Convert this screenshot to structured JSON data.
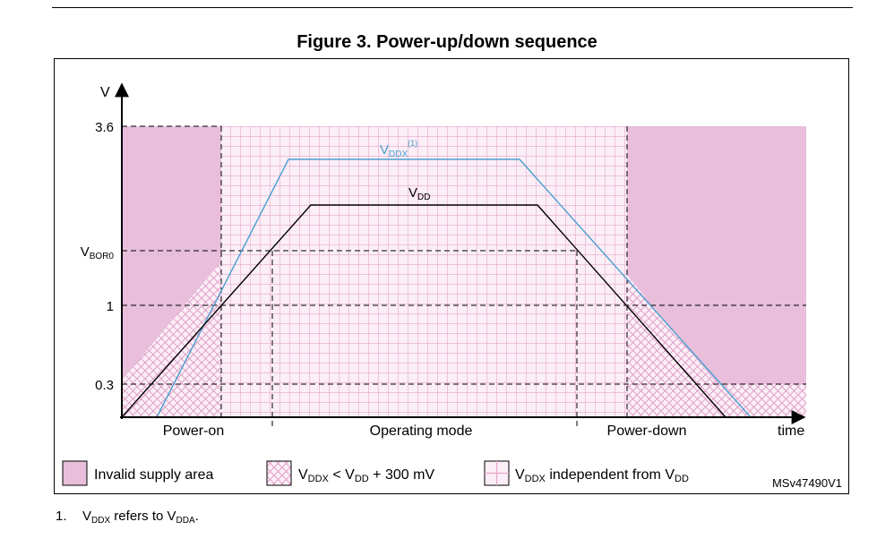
{
  "figure": {
    "title": "Figure 3. Power-up/down sequence",
    "code": "MSv47490V1"
  },
  "axes": {
    "y_label": "V",
    "x_label": "time",
    "y_ticks": [
      {
        "text": "3.6",
        "value": 3.6
      },
      {
        "text": "V",
        "sub": "BOR0",
        "value": "V_BOR0"
      },
      {
        "text": "1",
        "value": 1
      },
      {
        "text": "0.3",
        "value": 0.3
      }
    ]
  },
  "curves": {
    "vddx": {
      "main": "V",
      "sub": "DDX",
      "sup": "(1)",
      "color": "#4a9fd0"
    },
    "vdd": {
      "main": "V",
      "sub": "DD",
      "color": "#000000"
    }
  },
  "phases": [
    "Power-on",
    "Operating mode",
    "Power-down"
  ],
  "legend": [
    {
      "name": "invalid",
      "parts": [
        [
          "t",
          "Invalid supply area"
        ]
      ]
    },
    {
      "name": "crosshatch",
      "parts": [
        [
          "t",
          "V"
        ],
        [
          "s",
          "DDX"
        ],
        [
          "t",
          " < V"
        ],
        [
          "s",
          "DD"
        ],
        [
          "t",
          " + 300 mV"
        ]
      ]
    },
    {
      "name": "grid",
      "parts": [
        [
          "t",
          "V"
        ],
        [
          "s",
          "DDX"
        ],
        [
          "t",
          " independent from V"
        ],
        [
          "s",
          "DD"
        ]
      ]
    }
  ],
  "colors": {
    "invalid_fill": "#e8bedb",
    "grid_line": "#e5a8cc",
    "grid_bg": "#fbeef6",
    "dash": "#000000"
  },
  "footnote": {
    "number": "1.",
    "parts": [
      [
        "t",
        "V"
      ],
      [
        "s",
        "DDX"
      ],
      [
        "t",
        " refers to V"
      ],
      [
        "s",
        "DDA"
      ],
      [
        "t",
        "."
      ]
    ]
  }
}
